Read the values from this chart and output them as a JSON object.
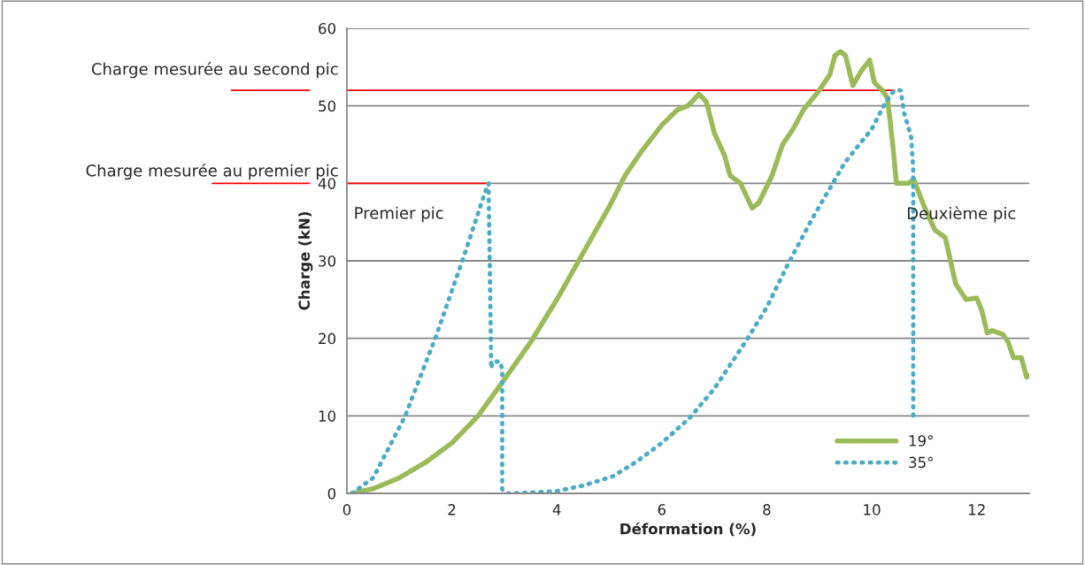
{
  "chart_data": {
    "type": "line",
    "xlabel": "Déformation (%)",
    "ylabel": "Charge (kN)",
    "xlim": [
      0,
      13
    ],
    "xticks": [
      0,
      2,
      4,
      6,
      8,
      10,
      12
    ],
    "ylim": [
      0,
      60
    ],
    "yticks": [
      0,
      10,
      20,
      30,
      40,
      50,
      60
    ],
    "grid": "y",
    "legend": "bottom right",
    "series": [
      {
        "name": "19°",
        "color": "#9bbb59",
        "line_style": "solid",
        "x": [
          0.1,
          0.5,
          1,
          1.5,
          2,
          2.5,
          2.97,
          3.5,
          4,
          4.5,
          5,
          5.3,
          5.6,
          6,
          6.3,
          6.5,
          6.71,
          6.85,
          7,
          7.2,
          7.3,
          7.5,
          7.72,
          7.85,
          8.1,
          8.3,
          8.5,
          8.7,
          9,
          9.2,
          9.3,
          9.4,
          9.5,
          9.64,
          9.8,
          9.96,
          10.05,
          10.2,
          10.3,
          10.4,
          10.47,
          10.7,
          10.8,
          11,
          11.2,
          11.4,
          11.5,
          11.6,
          11.8,
          12,
          12.1,
          12.2,
          12.3,
          12.5,
          12.6,
          12.7,
          12.85,
          12.95,
          13
        ],
        "values": [
          0,
          0.6,
          2,
          4,
          6.5,
          10,
          14.4,
          19.5,
          25,
          31,
          37,
          41,
          44,
          47.5,
          49.5,
          50,
          51.5,
          50.5,
          46.5,
          43.5,
          41,
          40,
          36.8,
          37.5,
          41,
          45,
          47,
          49.5,
          52,
          54,
          56.5,
          57,
          56.5,
          52.6,
          54.5,
          55.9,
          53,
          52,
          51,
          45,
          40,
          40,
          40.5,
          37,
          34,
          33,
          30,
          27,
          25,
          25.2,
          23.5,
          20.7,
          21,
          20.5,
          19.5,
          17.5,
          17.5,
          15,
          15.2
        ]
      },
      {
        "name": "35°",
        "color": "#4bacc6",
        "line_style": "dotted",
        "x": [
          0.1,
          0.5,
          1.1,
          1.7,
          2.24,
          2.63,
          2.7,
          2.75,
          2.78,
          2.92,
          2.96,
          2.96,
          3.05,
          3.5,
          4,
          4.5,
          5.07,
          5.5,
          6,
          6.54,
          7,
          7.6,
          8,
          8.39,
          8.87,
          9.49,
          10,
          10.25,
          10.43,
          10.55,
          10.62,
          10.75,
          10.79,
          10.79
        ],
        "values": [
          0,
          2,
          9.8,
          20.3,
          30.8,
          38.8,
          40,
          16.1,
          17,
          17,
          16,
          0.5,
          0,
          0.1,
          0.3,
          1,
          2.2,
          4,
          6.5,
          9.8,
          13.5,
          19.6,
          24,
          29.4,
          35.5,
          42.7,
          47,
          50.3,
          52,
          52,
          49,
          46,
          42,
          10
        ]
      }
    ],
    "ref_lines": [
      {
        "axis": "y",
        "value": 40,
        "label": "Charge mesurée au premier pic",
        "color": "#ff0000"
      },
      {
        "axis": "y",
        "value": 52,
        "label": "Charge mesurée au second pic",
        "color": "#ff0000"
      }
    ],
    "annotations": [
      "Premier pic",
      "Deuxième pic"
    ]
  }
}
